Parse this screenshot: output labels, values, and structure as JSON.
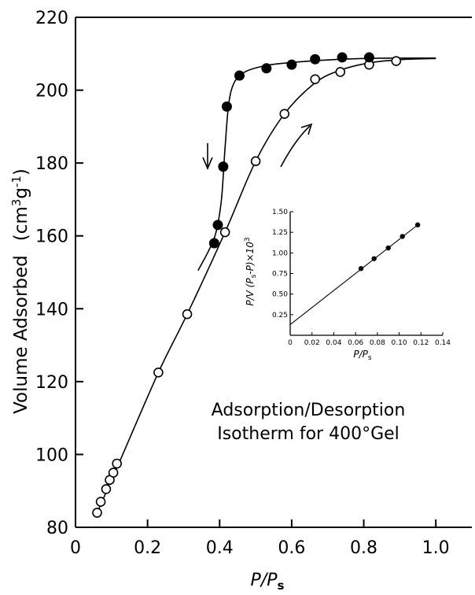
{
  "chart_data": [
    {
      "type": "scatter",
      "xlabel": "P/P",
      "xlabel_sub": "s",
      "ylabel": "Volume Adsorbed",
      "yunit_prefix": "(cm",
      "yunit_sup1": "3",
      "yunit_mid": "g",
      "yunit_sup2": "-1",
      "yunit_suffix": ")",
      "xlim": [
        0,
        1.1
      ],
      "ylim": [
        80,
        220
      ],
      "xticks": [
        0,
        0.2,
        0.4,
        0.6,
        0.8,
        1.0
      ],
      "xtick_labels": [
        "0",
        "0.2",
        "0.4",
        "0.6",
        "0.8",
        "1.0"
      ],
      "yticks": [
        80,
        100,
        120,
        140,
        160,
        180,
        200,
        220
      ],
      "ytick_labels": [
        "80",
        "100",
        "120",
        "140",
        "160",
        "180",
        "200",
        "220"
      ],
      "grid": false,
      "annotation_line1": "Adsorption/Desorption",
      "annotation_line2": "Isotherm for 400°Gel",
      "series": [
        {
          "marker": "open-circle",
          "x": [
            0.06,
            0.07,
            0.085,
            0.095,
            0.105,
            0.115,
            0.23,
            0.31,
            0.415,
            0.5,
            0.58,
            0.665,
            0.735,
            0.815,
            0.89
          ],
          "y": [
            84,
            87,
            90.5,
            93,
            95,
            97.5,
            122.5,
            138.5,
            161,
            180.5,
            193.5,
            203,
            205,
            207,
            208
          ]
        },
        {
          "marker": "filled-circle",
          "x": [
            0.385,
            0.395,
            0.41,
            0.42,
            0.455,
            0.53,
            0.6,
            0.665,
            0.74,
            0.815
          ],
          "y": [
            158,
            163,
            179,
            195.5,
            204,
            206,
            207,
            208.5,
            209,
            209
          ]
        }
      ],
      "adsorption_curve": {
        "x": [
          0.06,
          0.08,
          0.1,
          0.12,
          0.23,
          0.31,
          0.415,
          0.5,
          0.58,
          0.665,
          0.735,
          0.815,
          0.89,
          0.95,
          1.0
        ],
        "y": [
          84,
          88.5,
          93.5,
          97.5,
          122.5,
          138.5,
          161,
          180.5,
          193.5,
          202,
          205.5,
          207.5,
          208.3,
          208.6,
          208.7
        ]
      },
      "desorption_curve": {
        "x": [
          0.34,
          0.37,
          0.39,
          0.405,
          0.415,
          0.425,
          0.44,
          0.47,
          0.53,
          0.6,
          0.7,
          0.8,
          0.9,
          1.0
        ],
        "y": [
          150.5,
          156,
          161,
          170,
          184,
          196,
          202,
          205,
          206.8,
          207.6,
          208.3,
          208.7,
          208.8,
          208.8
        ]
      }
    },
    {
      "type": "scatter",
      "xlabel": "P/P",
      "xlabel_sub": "s",
      "ylabel": "P/V (P",
      "ylabel_sub": "s",
      "ylabel_rest": "-P)×10",
      "ylabel_sup": "3",
      "xlim": [
        0,
        0.14
      ],
      "ylim": [
        0,
        1.5
      ],
      "xticks": [
        0,
        0.02,
        0.04,
        0.06,
        0.08,
        0.1,
        0.12,
        0.14
      ],
      "xtick_labels": [
        "0",
        "0.02",
        "0.04",
        "0.06",
        "0.08",
        "0.10",
        "0.12",
        "0.14"
      ],
      "yticks": [
        0.25,
        0.5,
        0.75,
        1.0,
        1.25,
        1.5
      ],
      "ytick_labels": [
        "0.25",
        "0.50",
        "0.75",
        "1.00",
        "1.25",
        "1.50"
      ],
      "grid": false,
      "series": [
        {
          "marker": "filled-circle",
          "x": [
            0.065,
            0.077,
            0.09,
            0.103,
            0.117
          ],
          "y": [
            0.81,
            0.93,
            1.06,
            1.2,
            1.34
          ]
        }
      ],
      "fit_line": {
        "x": [
          0,
          0.117
        ],
        "y": [
          0.13,
          1.34
        ]
      }
    }
  ]
}
